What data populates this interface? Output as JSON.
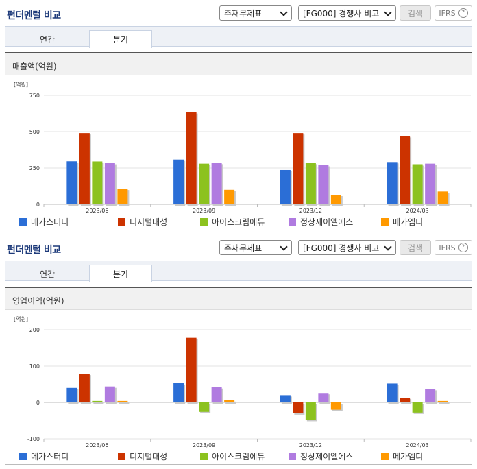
{
  "colors": [
    "#2b6ed6",
    "#cc3300",
    "#8cc21f",
    "#b07be0",
    "#ff9900"
  ],
  "sections": [
    {
      "title": "펀더멘털 비교",
      "select1": "주재무제표",
      "select2": "[FG000] 경쟁사 비교",
      "search_label": "검색",
      "ifrs_label": "IFRS",
      "help_icon": "?",
      "tabs": [
        "연간",
        "분기"
      ],
      "active_tab": "분기",
      "panel_title": "매출액(억원)",
      "unit_label": "[억원]",
      "chart_data": {
        "type": "bar",
        "title": "매출액(억원)",
        "ylabel": "[억원]",
        "categories": [
          "2023/06",
          "2023/09",
          "2023/12",
          "2024/03"
        ],
        "ylim": [
          0,
          750
        ],
        "yticks": [
          0,
          250,
          500,
          750
        ],
        "series": [
          {
            "name": "메가스터디",
            "values": [
              296,
              308,
              236,
              291
            ]
          },
          {
            "name": "디지털대성",
            "values": [
              490,
              634,
              490,
              470
            ]
          },
          {
            "name": "아이스크림에듀",
            "values": [
              295,
              280,
              286,
              276
            ]
          },
          {
            "name": "정상제이엘에스",
            "values": [
              285,
              286,
              271,
              280
            ]
          },
          {
            "name": "메가엠디",
            "values": [
              108,
              100,
              66,
              88
            ]
          }
        ]
      }
    },
    {
      "title": "펀더멘털 비교",
      "select1": "주재무제표",
      "select2": "[FG000] 경쟁사 비교",
      "search_label": "검색",
      "ifrs_label": "IFRS",
      "help_icon": "?",
      "tabs": [
        "연간",
        "분기"
      ],
      "active_tab": "분기",
      "panel_title": "영업이익(억원)",
      "unit_label": "[억원]",
      "chart_data": {
        "type": "bar",
        "title": "영업이익(억원)",
        "ylabel": "[억원]",
        "categories": [
          "2023/06",
          "2023/09",
          "2023/12",
          "2024/03"
        ],
        "ylim": [
          -100,
          200
        ],
        "yticks": [
          -100,
          0,
          100,
          200
        ],
        "series": [
          {
            "name": "메가스터디",
            "values": [
              40,
              53,
              20,
              52
            ]
          },
          {
            "name": "디지털대성",
            "values": [
              79,
              178,
              -30,
              13
            ]
          },
          {
            "name": "아이스크림에듀",
            "values": [
              4,
              -26,
              -48,
              -28
            ]
          },
          {
            "name": "정상제이엘에스",
            "values": [
              44,
              42,
              26,
              37
            ]
          },
          {
            "name": "메가엠디",
            "values": [
              4,
              6,
              -20,
              4
            ]
          }
        ]
      }
    }
  ]
}
